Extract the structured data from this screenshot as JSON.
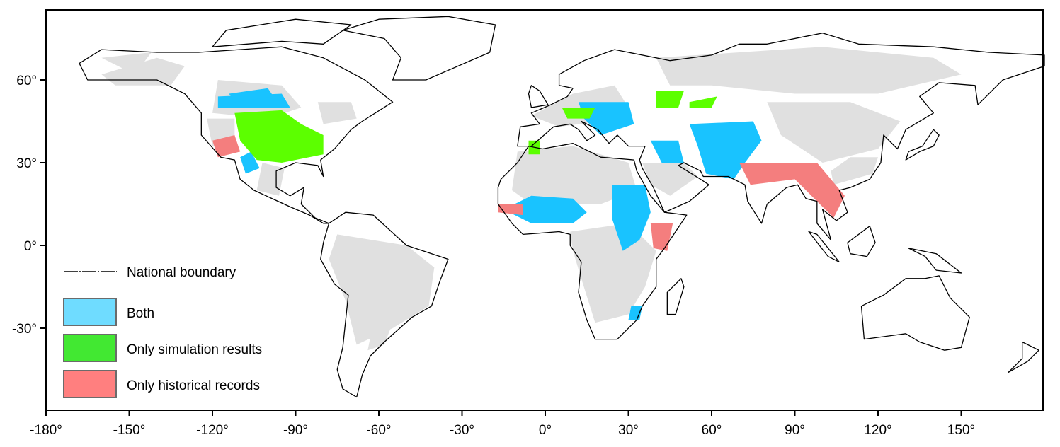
{
  "map": {
    "projection": "equirectangular",
    "lon_range": [
      -180,
      180
    ],
    "lat_range": [
      -59,
      85
    ],
    "x_ticks": [
      "-180°",
      "-150°",
      "-120°",
      "-90°",
      "-60°",
      "-30°",
      "0°",
      "30°",
      "60°",
      "90°",
      "120°",
      "150°"
    ],
    "x_tick_values": [
      -180,
      -150,
      -120,
      -90,
      -60,
      -30,
      0,
      30,
      60,
      90,
      120,
      150
    ],
    "y_ticks": [
      "60°",
      "30°",
      "0°",
      "-30°"
    ],
    "y_tick_values": [
      60,
      30,
      0,
      -30
    ],
    "colors": {
      "land": "#ffffff",
      "study_area": "#e0e0e0",
      "both": "#19c3ff",
      "only_simulation": "#5cff00",
      "only_historical": "#f47e7e",
      "boundary": "#000000"
    }
  },
  "legend": {
    "boundary_label": "National boundary",
    "items": [
      {
        "label": "Both",
        "color": "#6fdcff"
      },
      {
        "label": "Only simulation results",
        "color": "#42e832"
      },
      {
        "label": "Only historical records",
        "color": "#ff7f7f"
      }
    ]
  }
}
